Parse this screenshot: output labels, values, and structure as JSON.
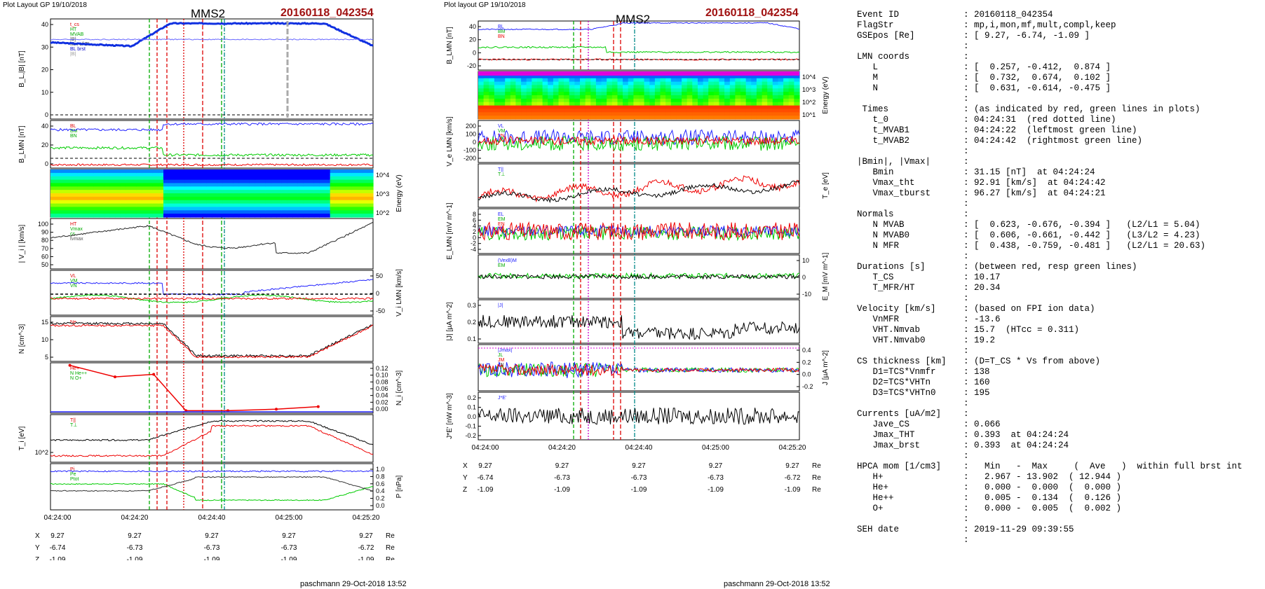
{
  "left_panel": {
    "header": "Plot Layout GP 19/10/2018",
    "spacecraft": "MMS2",
    "event": "20160118_042354",
    "footer": "paschmann 29-Oct-2018 13:52",
    "panels": [
      {
        "ylabel": "B_L,|B| [nT]",
        "ticks": [
          "40",
          "30",
          "20",
          "10",
          "0"
        ],
        "legend": [
          "t_cs",
          "HT",
          "MVAB",
          "|B|",
          "Min of BL",
          "BL brst",
          "|B|"
        ]
      },
      {
        "ylabel": "B_LMN [nT]",
        "ticks": [
          "40",
          "20",
          "0"
        ],
        "legend": [
          "BL",
          "BM",
          "BN"
        ]
      },
      {
        "ylabel": "Energy (eV)",
        "ticks": [
          "10^4",
          "10^3",
          "10^2"
        ]
      },
      {
        "ylabel": "| V_i | [km/s]",
        "ticks": [
          "100",
          "90",
          "80",
          "70",
          "60",
          "50"
        ],
        "legend": [
          "HT",
          "Vmax",
          "cs",
          "tvmax"
        ]
      },
      {
        "ylabel": "V_i LMN [km/s]",
        "ticks": [
          "50",
          "0",
          "-50"
        ],
        "legend": [
          "VL",
          "VM",
          "VN"
        ]
      },
      {
        "ylabel": "N [cm^-3]",
        "ticks": [
          "15",
          "10",
          "5"
        ],
        "legend": [
          "Ne"
        ]
      },
      {
        "ylabel": "N_i [cm^-3]",
        "ticks": [
          "0.12",
          "0.10",
          "0.08",
          "0.06",
          "0.04",
          "0.02",
          "0.00"
        ],
        "legend": [
          "He+",
          "N He++",
          "N O+"
        ]
      },
      {
        "ylabel": "T_i [eV]",
        "ticks": [
          "10^2"
        ],
        "legend": [
          "T||",
          "T⊥"
        ]
      },
      {
        "ylabel": "P [nPa]",
        "ticks": [
          "1.0",
          "0.8",
          "0.6",
          "0.4",
          "0.2",
          "0.0"
        ],
        "legend": [
          "Pi",
          "Pe",
          "Ptot"
        ]
      }
    ],
    "time_ticks": [
      "04:24:00",
      "04:24:20",
      "04:24:40",
      "04:25:00",
      "04:25:20"
    ],
    "coords": {
      "labels": [
        "X",
        "Y",
        "Z"
      ],
      "unit": "Re",
      "X": [
        "9.27",
        "9.27",
        "9.27",
        "9.27",
        "9.27"
      ],
      "Y": [
        "-6.74",
        "-6.73",
        "-6.73",
        "-6.73",
        "-6.72"
      ],
      "Z": [
        "-1.09",
        "-1.09",
        "-1.09",
        "-1.09",
        "-1.09"
      ]
    }
  },
  "middle_panel": {
    "header": "Plot layout GP 19/10/2018",
    "spacecraft": "MMS2",
    "event": "20160118_042354",
    "footer": "paschmann 29-Oct-2018 13:52",
    "panels": [
      {
        "ylabel": "B_LMN [nT]",
        "ticks": [
          "40",
          "20",
          "0",
          "-20"
        ],
        "legend": [
          "BL",
          "BM",
          "BN"
        ]
      },
      {
        "ylabel": "Energy (eV)",
        "ticks": [
          "10^4",
          "10^3",
          "10^2",
          "10^1"
        ]
      },
      {
        "ylabel": "V_e LMN [km/s]",
        "ticks": [
          "200",
          "100",
          "0",
          "-100",
          "-200"
        ],
        "legend": [
          "VL",
          "VM",
          "VN"
        ]
      },
      {
        "ylabel": "T_e [eV]",
        "ticks": [],
        "legend": [
          "T||",
          "T⊥"
        ]
      },
      {
        "ylabel": "E_LMN [mV m^-1]",
        "ticks": [
          "8",
          "6",
          "4",
          "2",
          "0",
          "-2",
          "-4"
        ],
        "legend": [
          "EL",
          "EM",
          "EN"
        ]
      },
      {
        "ylabel": "E_M [mV m^-1]",
        "ticks": [
          "10",
          "0",
          "-10"
        ],
        "legend": [
          "(VexB)M",
          "EM"
        ]
      },
      {
        "ylabel": "|J| [µA m^-2]",
        "ticks": [
          "0.3",
          "0.2",
          "0.1"
        ],
        "legend": [
          "|J|"
        ]
      },
      {
        "ylabel": "J [µA m^-2]",
        "ticks": [
          "0.4",
          "0.2",
          "0.0",
          "-0.2"
        ],
        "legend": [
          "|Jmax|",
          "JL",
          "JM",
          "JN"
        ]
      },
      {
        "ylabel": "J*E' [nW m^-3]",
        "ticks": [
          "0.2",
          "0.1",
          "0.0",
          "-0.1",
          "-0.2"
        ],
        "legend": [
          "J*E'"
        ]
      }
    ],
    "time_ticks": [
      "04:24:00",
      "04:24:20",
      "04:24:40",
      "04:25:00",
      "04:25:20"
    ],
    "coords": {
      "labels": [
        "X",
        "Y",
        "Z"
      ],
      "unit": "Re",
      "X": [
        "9.27",
        "9.27",
        "9.27",
        "9.27",
        "9.27"
      ],
      "Y": [
        "-6.74",
        "-6.73",
        "-6.73",
        "-6.73",
        "-6.72"
      ],
      "Z": [
        "-1.09",
        "-1.09",
        "-1.09",
        "-1.09",
        "-1.09"
      ]
    }
  },
  "summary": [
    [
      "Event ID",
      ": 20160118_042354"
    ],
    [
      "FlagStr",
      ": mp,i,mon,mf,mult,compl,keep"
    ],
    [
      "GSEpos [Re]",
      ": [ 9.27, -6.74, -1.09 ]"
    ],
    [
      "",
      ":"
    ],
    [
      "LMN coords",
      ":"
    ],
    [
      "   L",
      ": [  0.257, -0.412,  0.874 ]"
    ],
    [
      "   M",
      ": [  0.732,  0.674,  0.102 ]"
    ],
    [
      "   N",
      ": [  0.631, -0.614, -0.475 ]"
    ],
    [
      "",
      ":"
    ],
    [
      " Times",
      ": (as indicated by red, green lines in plots)"
    ],
    [
      "   t_0",
      ": 04:24:31  (red dotted line)"
    ],
    [
      "   t_MVAB1",
      ": 04:24:22  (leftmost green line)"
    ],
    [
      "   t_MVAB2",
      ": 04:24:42  (rightmost green line)"
    ],
    [
      "",
      ":"
    ],
    [
      "|Bmin|, |Vmax|",
      ":"
    ],
    [
      "   Bmin",
      ": 31.15 [nT]  at 04:24:24"
    ],
    [
      "   Vmax_tht",
      ": 92.91 [km/s]  at 04:24:42"
    ],
    [
      "   Vmax_tburst",
      ": 96.27 [km/s]  at 04:24:21"
    ],
    [
      "",
      ":"
    ],
    [
      "Normals",
      ":"
    ],
    [
      "   N MVAB",
      ": [  0.623, -0.676, -0.394 ]   (L2/L1 = 5.04)"
    ],
    [
      "   N MVAB0",
      ": [  0.606, -0.661, -0.442 ]   (L3/L2 = 4.23)"
    ],
    [
      "   N MFR",
      ": [  0.438, -0.759, -0.481 ]   (L2/L1 = 20.63)"
    ],
    [
      "",
      ":"
    ],
    [
      "Durations [s]",
      ": (between red, resp green lines)"
    ],
    [
      "   T_CS",
      ": 10.17"
    ],
    [
      "   T_MFR/HT",
      ": 20.34"
    ],
    [
      "",
      ":"
    ],
    [
      "Velocity [km/s]",
      ": (based on FPI ion data)"
    ],
    [
      "   VnMFR",
      ": -13.6"
    ],
    [
      "   VHT.Nmvab",
      ": 15.7  (HTcc = 0.311)"
    ],
    [
      "   VHT.Nmvab0",
      ": 19.2"
    ],
    [
      "",
      ":"
    ],
    [
      "CS thickness [km]",
      ": (D=T_CS * Vs from above)"
    ],
    [
      "   D1=TCS*Vnmfr",
      ": 138"
    ],
    [
      "   D2=TCS*VHTn",
      ": 160"
    ],
    [
      "   D3=TCS*VHTn0",
      ": 195"
    ],
    [
      "",
      ":"
    ],
    [
      "Currents [uA/m2]",
      ":"
    ],
    [
      "   Jave_CS",
      ": 0.066"
    ],
    [
      "   Jmax_THT",
      ": 0.393  at 04:24:24"
    ],
    [
      "   Jmax_brst",
      ": 0.393  at 04:24:24"
    ],
    [
      "",
      ":"
    ],
    [
      "HPCA mom [1/cm3]",
      ":   Min   -  Max     (  Ave   )  within full brst int"
    ],
    [
      "   H+",
      ":   2.967 - 13.902  ( 12.944 )"
    ],
    [
      "   He+",
      ":   0.000 -  0.000  (  0.000 )"
    ],
    [
      "   He++",
      ":   0.005 -  0.134  (  0.126 )"
    ],
    [
      "   O+",
      ":   0.000 -  0.005  (  0.002 )"
    ],
    [
      "",
      ":"
    ],
    [
      "SEH date",
      ": 2019-11-29 09:39:55"
    ],
    [
      "",
      ":"
    ]
  ],
  "chart_data": [
    {
      "type": "line",
      "title": "MMS2",
      "xlabel": "",
      "x_ticks": [
        "04:24:00",
        "04:24:20",
        "04:24:40",
        "04:25:00",
        "04:25:20"
      ],
      "event_lines": {
        "t_0": "04:24:31",
        "t_MVAB1": "04:24:22",
        "t_MVAB2": "04:24:42"
      },
      "series": [
        {
          "name": "|B|",
          "unit": "nT",
          "values": [
            33,
            32,
            31,
            30,
            31,
            38,
            42,
            43,
            43,
            43,
            42,
            36,
            32
          ]
        },
        {
          "name": "N",
          "unit": "cm^-3",
          "values": [
            15,
            15,
            14,
            14,
            13,
            8,
            3,
            3,
            3,
            3,
            3,
            5,
            15
          ]
        },
        {
          "name": "He++",
          "unit": "cm^-3",
          "values": [
            0.12,
            0.09,
            0.1,
            0.005,
            0.005,
            0.008,
            0.01
          ]
        }
      ]
    },
    {
      "type": "line",
      "title": "MMS2",
      "x_ticks": [
        "04:24:00",
        "04:24:20",
        "04:24:40",
        "04:25:00",
        "04:25:20"
      ],
      "series": [
        {
          "name": "BL",
          "unit": "nT",
          "values": [
            32,
            31,
            30,
            31,
            38,
            42,
            43,
            43,
            42,
            36,
            32
          ]
        },
        {
          "name": "|J|",
          "unit": "µA m^-2",
          "values": [
            0.15,
            0.12,
            0.18,
            0.2,
            0.12,
            0.05,
            0.05,
            0.05,
            0.08,
            0.1,
            0.12
          ]
        }
      ]
    }
  ]
}
